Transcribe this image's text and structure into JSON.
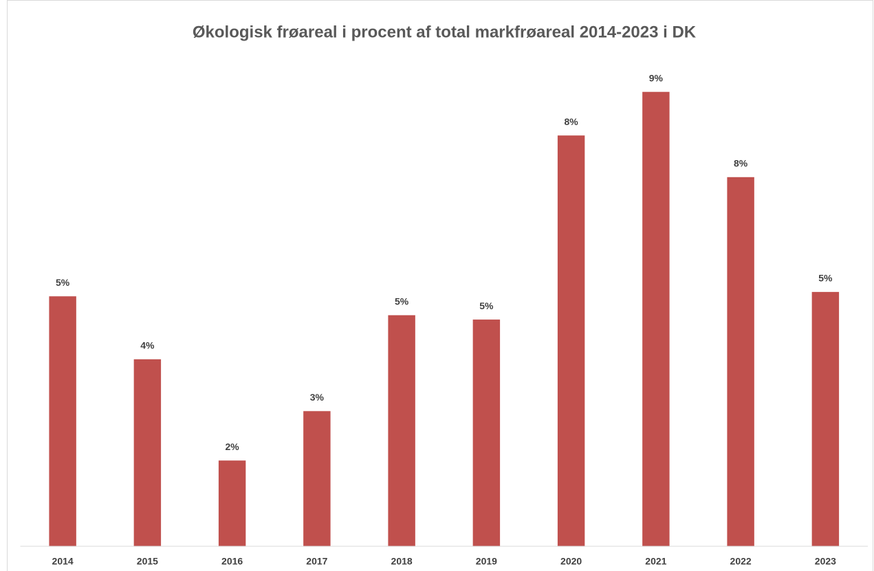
{
  "chart_data": {
    "type": "bar",
    "title": "Økologisk frøareal i procent af total markfrøareal 2014-2023 i DK",
    "categories": [
      "2014",
      "2015",
      "2016",
      "2017",
      "2018",
      "2019",
      "2020",
      "2021",
      "2022",
      "2023"
    ],
    "values": [
      5.16,
      3.86,
      1.77,
      2.79,
      4.77,
      4.68,
      8.48,
      9.38,
      7.62,
      5.25
    ],
    "value_labels": [
      "5%",
      "4%",
      "2%",
      "3%",
      "5%",
      "5%",
      "8%",
      "9%",
      "8%",
      "5%"
    ],
    "color": "#c0504d",
    "ylim": [
      0,
      10
    ]
  }
}
